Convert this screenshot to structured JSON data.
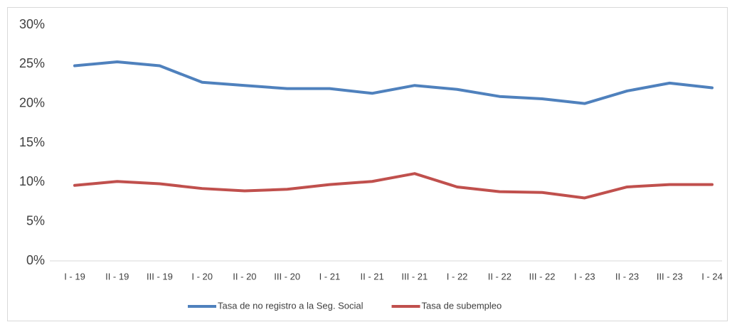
{
  "chart_data": {
    "type": "line",
    "categories": [
      "I - 19",
      "II - 19",
      "III - 19",
      "I - 20",
      "II - 20",
      "III - 20",
      "I - 21",
      "II - 21",
      "III - 21",
      "I - 22",
      "II - 22",
      "III - 22",
      "I - 23",
      "II - 23",
      "III - 23",
      "I - 24"
    ],
    "series": [
      {
        "name": "Tasa de no registro a la Seg. Social",
        "color": "#4f81bd",
        "values": [
          24.8,
          25.3,
          24.8,
          22.7,
          22.3,
          21.9,
          21.9,
          21.3,
          22.3,
          21.8,
          20.9,
          20.6,
          20.0,
          21.6,
          22.6,
          22.0
        ]
      },
      {
        "name": "Tasa de subempleo",
        "color": "#c0504d",
        "values": [
          9.6,
          10.1,
          9.8,
          9.2,
          8.9,
          9.1,
          9.7,
          10.1,
          11.1,
          9.4,
          8.8,
          8.7,
          8.0,
          9.4,
          9.7,
          9.7
        ]
      }
    ],
    "ylim": [
      0,
      30
    ],
    "yticks": [
      {
        "value": 0,
        "label": "0%"
      },
      {
        "value": 5,
        "label": "5%"
      },
      {
        "value": 10,
        "label": "10%"
      },
      {
        "value": 15,
        "label": "15%"
      },
      {
        "value": 20,
        "label": "20%"
      },
      {
        "value": 25,
        "label": "25%"
      },
      {
        "value": 30,
        "label": "30%"
      }
    ],
    "grid": false,
    "legend": "bottom"
  }
}
